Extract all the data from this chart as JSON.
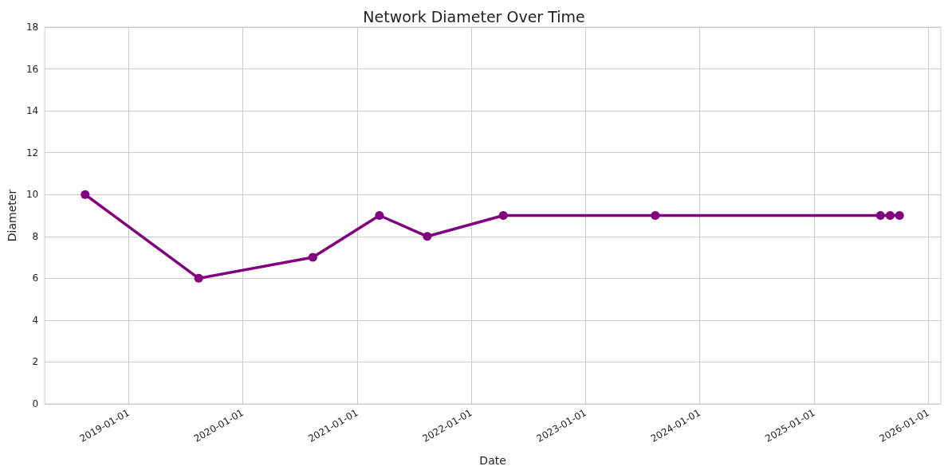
{
  "chart_data": {
    "type": "line",
    "title": "Network Diameter Over Time",
    "xlabel": "Date",
    "ylabel": "Diameter",
    "x": [
      "2018-08-15",
      "2019-08-13",
      "2020-08-12",
      "2021-03-13",
      "2021-08-13",
      "2022-04-13",
      "2023-08-12",
      "2025-08-01",
      "2025-09-01",
      "2025-10-01"
    ],
    "series": [
      {
        "color": "#800080",
        "values": [
          10,
          6,
          7,
          9,
          8,
          9,
          9,
          9,
          9,
          9
        ]
      }
    ],
    "xlim": [
      "2018-04-08",
      "2026-02-10"
    ],
    "xticks": [
      "2019-01-01",
      "2020-01-01",
      "2021-01-01",
      "2022-01-01",
      "2023-01-01",
      "2024-01-01",
      "2025-01-01",
      "2026-01-01"
    ],
    "ylim": [
      0,
      18
    ],
    "yticks": [
      0,
      2,
      4,
      6,
      8,
      10,
      12,
      14,
      16,
      18
    ],
    "grid": true,
    "marker": "circle",
    "line_style": "solid"
  }
}
